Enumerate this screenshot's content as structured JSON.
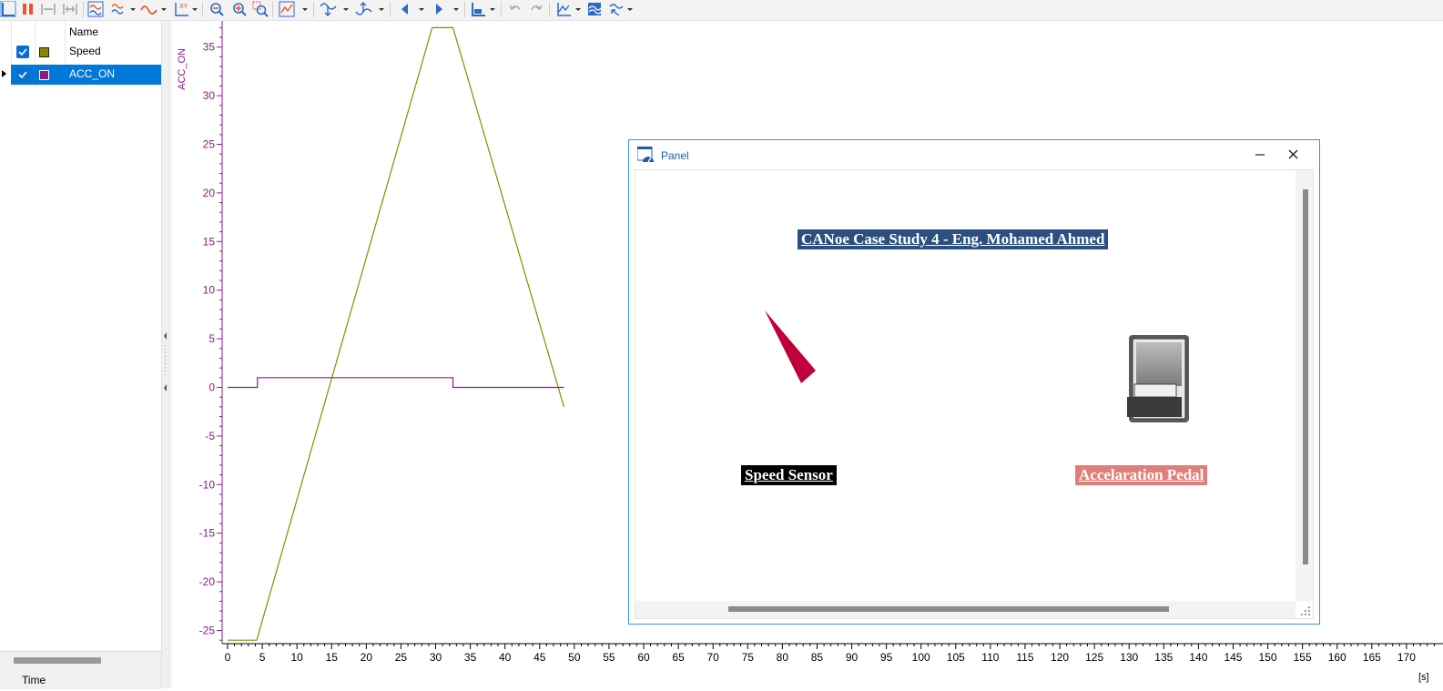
{
  "toolbar": {
    "icons": [
      "cursor-icon",
      "pause-icon",
      "fit-x-icon",
      "fit-all-x-icon",
      "signal-layout-icon",
      "signal-dropdown-icon",
      "waveform-icon",
      "xy-mode-icon",
      "zoom-out-icon",
      "zoom-in-icon",
      "zoom-box-icon",
      "fit-to-window-icon",
      "marker-down-icon",
      "marker-up-icon",
      "step-back-icon",
      "step-forward-icon",
      "axis-layout-icon",
      "undo-icon",
      "redo-icon",
      "graph-options-icon",
      "layers-icon",
      "measure-icon"
    ]
  },
  "signal_list": {
    "header_name": "Name",
    "items": [
      {
        "name": "Speed",
        "color": "#8a8a00",
        "checked": true,
        "selected": false
      },
      {
        "name": "ACC_ON",
        "color": "#8b1a8b",
        "checked": true,
        "selected": true
      }
    ],
    "time_label": "Time"
  },
  "chart_data": {
    "type": "line",
    "y_axis_label": "ACC_ON",
    "y_axis_color": "#8b1a8b",
    "x_unit": "[s]",
    "xlim": [
      0,
      170
    ],
    "ylim": [
      -26,
      37
    ],
    "x_ticks": [
      0,
      5,
      10,
      15,
      20,
      25,
      30,
      35,
      40,
      45,
      50,
      55,
      60,
      65,
      70,
      75,
      80,
      85,
      90,
      95,
      100,
      105,
      110,
      115,
      120,
      125,
      130,
      135,
      140,
      145,
      150,
      155,
      160,
      165,
      170
    ],
    "y_ticks": [
      35,
      30,
      25,
      20,
      15,
      10,
      5,
      0,
      -5,
      -10,
      -15,
      -20,
      -25
    ],
    "series": [
      {
        "name": "Speed",
        "color": "#8a8a00",
        "x": [
          0,
          4.2,
          29.5,
          32.5,
          48.5
        ],
        "y": [
          -26,
          -26,
          37,
          37,
          -2
        ]
      },
      {
        "name": "ACC_ON",
        "color": "#8b1a8b",
        "x": [
          0,
          4.3,
          4.3,
          32.5,
          32.5,
          48.5
        ],
        "y": [
          0,
          0,
          1,
          1,
          0,
          0
        ]
      }
    ]
  },
  "panel": {
    "title": "Panel",
    "case_title": "CANoe Case Study 4 - Eng. Mohamed Ahmed",
    "speed_label": "Speed Sensor",
    "accel_label": "Accelaration Pedal",
    "needle_color": "#c0003a",
    "case_title_bg": "#2b5080",
    "accel_label_bg": "#e07f7a"
  }
}
